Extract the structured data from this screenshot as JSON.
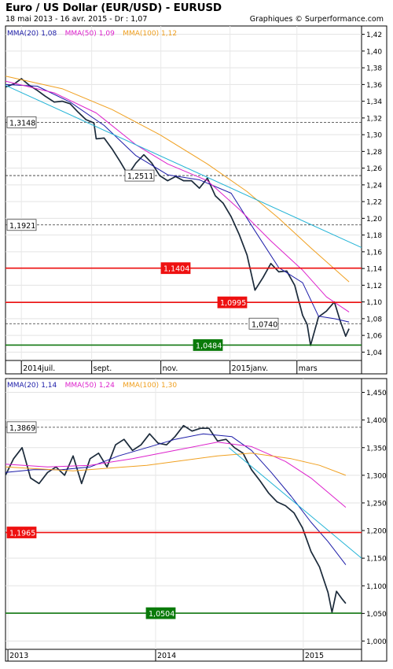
{
  "header": {
    "title": "Euro / US Dollar (EUR/USD) - EURUSD",
    "subtitle": "18 mai 2013 - 16 avr. 2015 - Dr : 1,07",
    "credit": "Graphiques © Surperformance.com"
  },
  "colors": {
    "price": "#1b2a3a",
    "mma20": "#1c1ca8",
    "mma50": "#dd22cc",
    "mma100": "#f0a020",
    "trend": "#22b3d6",
    "resistance": "#ee1111",
    "support": "#117711",
    "label_green_bg": "#0a7a0a",
    "label_red_bg": "#ee1111"
  },
  "chart_data": [
    {
      "type": "line",
      "name": "daily",
      "xlabels": [
        "2014juil.",
        "sept.",
        "nov.",
        "2015janv.",
        "mars"
      ],
      "xticks": [
        "2014-07-01",
        "2014-09-01",
        "2014-11-01",
        "2015-01-01",
        "2015-03-01"
      ],
      "xlim": [
        "2014-06-17",
        "2015-04-27"
      ],
      "ylim": [
        1.03,
        1.43
      ],
      "yticks": [
        "1,04",
        "1,06",
        "1,08",
        "1,10",
        "1,12",
        "1,14",
        "1,16",
        "1,18",
        "1,20",
        "1,22",
        "1,24",
        "1,26",
        "1,28",
        "1,30",
        "1,32",
        "1,34",
        "1,36",
        "1,38",
        "1,40",
        "1,42"
      ],
      "yticks_values": [
        1.04,
        1.06,
        1.08,
        1.1,
        1.12,
        1.14,
        1.16,
        1.18,
        1.2,
        1.22,
        1.24,
        1.26,
        1.28,
        1.3,
        1.32,
        1.34,
        1.36,
        1.38,
        1.4,
        1.42
      ],
      "legend": [
        {
          "label": "MMA(20)",
          "value": "1,08"
        },
        {
          "label": "MMA(50)",
          "value": "1,09"
        },
        {
          "label": "MMA(100)",
          "value": "1,12"
        }
      ],
      "annotations": [
        {
          "label": "1,3148",
          "value": 1.3148,
          "style": "dashed"
        },
        {
          "label": "1,2511",
          "value": 1.2511,
          "style": "dashed"
        },
        {
          "label": "1,1921",
          "value": 1.1921,
          "style": "dashed"
        },
        {
          "label": "1,1404",
          "value": 1.1404,
          "style": "red"
        },
        {
          "label": "1,0995",
          "value": 1.0995,
          "style": "red"
        },
        {
          "label": "1,0740",
          "value": 1.074,
          "style": "dashed"
        },
        {
          "label": "1,0484",
          "value": 1.0484,
          "style": "green"
        }
      ],
      "series": [
        {
          "key": "price",
          "x": [
            "2014-06-17",
            "2014-06-25",
            "2014-07-01",
            "2014-07-08",
            "2014-07-15",
            "2014-07-22",
            "2014-07-30",
            "2014-08-06",
            "2014-08-13",
            "2014-08-20",
            "2014-08-27",
            "2014-09-03",
            "2014-09-05",
            "2014-09-12",
            "2014-09-19",
            "2014-09-26",
            "2014-10-03",
            "2014-10-10",
            "2014-10-17",
            "2014-10-24",
            "2014-10-31",
            "2014-11-07",
            "2014-11-14",
            "2014-11-21",
            "2014-11-28",
            "2014-12-05",
            "2014-12-12",
            "2014-12-19",
            "2014-12-26",
            "2015-01-02",
            "2015-01-09",
            "2015-01-16",
            "2015-01-23",
            "2015-01-30",
            "2015-02-06",
            "2015-02-13",
            "2015-02-20",
            "2015-02-27",
            "2015-03-06",
            "2015-03-10",
            "2015-03-13",
            "2015-03-20",
            "2015-03-27",
            "2015-04-03",
            "2015-04-08",
            "2015-04-13",
            "2015-04-16"
          ],
          "y": [
            1.357,
            1.361,
            1.367,
            1.359,
            1.353,
            1.346,
            1.339,
            1.34,
            1.337,
            1.327,
            1.318,
            1.314,
            1.295,
            1.296,
            1.283,
            1.268,
            1.252,
            1.266,
            1.276,
            1.266,
            1.251,
            1.245,
            1.25,
            1.245,
            1.245,
            1.236,
            1.248,
            1.227,
            1.218,
            1.202,
            1.181,
            1.156,
            1.114,
            1.129,
            1.146,
            1.136,
            1.137,
            1.12,
            1.084,
            1.073,
            1.048,
            1.082,
            1.089,
            1.1,
            1.078,
            1.059,
            1.068
          ]
        },
        {
          "key": "mma20",
          "x": [
            "2014-06-17",
            "2014-07-15",
            "2014-08-13",
            "2014-09-12",
            "2014-10-10",
            "2014-11-07",
            "2014-12-05",
            "2015-01-02",
            "2015-01-23",
            "2015-02-13",
            "2015-03-06",
            "2015-03-20",
            "2015-04-03",
            "2015-04-16"
          ],
          "y": [
            1.36,
            1.358,
            1.339,
            1.311,
            1.275,
            1.252,
            1.246,
            1.23,
            1.185,
            1.141,
            1.123,
            1.083,
            1.08,
            1.076
          ]
        },
        {
          "key": "mma50",
          "x": [
            "2014-06-17",
            "2014-07-30",
            "2014-09-05",
            "2014-10-10",
            "2014-11-07",
            "2014-12-12",
            "2015-01-09",
            "2015-02-06",
            "2015-03-06",
            "2015-03-27",
            "2015-04-16"
          ],
          "y": [
            1.364,
            1.35,
            1.326,
            1.288,
            1.265,
            1.245,
            1.211,
            1.173,
            1.138,
            1.106,
            1.088
          ]
        },
        {
          "key": "mma100",
          "x": [
            "2014-06-17",
            "2014-08-06",
            "2014-09-19",
            "2014-10-31",
            "2014-12-12",
            "2015-01-16",
            "2015-02-13",
            "2015-03-13",
            "2015-04-16"
          ],
          "y": [
            1.37,
            1.355,
            1.33,
            1.3,
            1.265,
            1.232,
            1.2,
            1.165,
            1.124
          ]
        },
        {
          "key": "trend",
          "x": [
            "2014-06-17",
            "2015-04-27"
          ],
          "y": [
            1.359,
            1.165
          ]
        }
      ]
    },
    {
      "type": "line",
      "name": "weekly",
      "xlabels": [
        "2013",
        "2014",
        "2015"
      ],
      "xticks": [
        "2013-01-01",
        "2014-01-01",
        "2015-01-01"
      ],
      "xlim": [
        "2012-12-26",
        "2015-05-25"
      ],
      "ylim": [
        0.985,
        1.475
      ],
      "yticks": [
        "1,000",
        "1,050",
        "1,100",
        "1,150",
        "1,200",
        "1,250",
        "1,300",
        "1,350",
        "1,400",
        "1,450"
      ],
      "yticks_values": [
        1.0,
        1.05,
        1.1,
        1.15,
        1.2,
        1.25,
        1.3,
        1.35,
        1.4,
        1.45
      ],
      "legend": [
        {
          "label": "MMA(20)",
          "value": "1,14"
        },
        {
          "label": "MMA(50)",
          "value": "1,24"
        },
        {
          "label": "MMA(100)",
          "value": "1,30"
        }
      ],
      "annotations": [
        {
          "label": "1,3869",
          "value": 1.3869,
          "style": "dashed"
        },
        {
          "label": "1,1965",
          "value": 1.1965,
          "style": "red"
        },
        {
          "label": "1,0504",
          "value": 1.0504,
          "style": "green"
        }
      ],
      "series": [
        {
          "key": "price",
          "x": [
            "2012-12-26",
            "2013-01-15",
            "2013-02-05",
            "2013-02-26",
            "2013-03-19",
            "2013-04-09",
            "2013-04-30",
            "2013-05-21",
            "2013-06-11",
            "2013-07-02",
            "2013-07-23",
            "2013-08-13",
            "2013-09-03",
            "2013-09-24",
            "2013-10-15",
            "2013-11-05",
            "2013-11-26",
            "2013-12-17",
            "2014-01-07",
            "2014-01-28",
            "2014-02-18",
            "2014-03-11",
            "2014-04-01",
            "2014-04-22",
            "2014-05-13",
            "2014-06-03",
            "2014-06-24",
            "2014-07-15",
            "2014-08-05",
            "2014-08-26",
            "2014-09-16",
            "2014-10-07",
            "2014-10-28",
            "2014-11-18",
            "2014-12-09",
            "2014-12-30",
            "2015-01-20",
            "2015-02-10",
            "2015-03-03",
            "2015-03-13",
            "2015-03-24",
            "2015-04-07",
            "2015-04-16"
          ],
          "y": [
            1.3,
            1.33,
            1.35,
            1.295,
            1.285,
            1.305,
            1.315,
            1.3,
            1.335,
            1.285,
            1.33,
            1.34,
            1.315,
            1.355,
            1.365,
            1.345,
            1.355,
            1.375,
            1.358,
            1.355,
            1.37,
            1.39,
            1.38,
            1.385,
            1.385,
            1.362,
            1.365,
            1.35,
            1.34,
            1.31,
            1.29,
            1.268,
            1.252,
            1.245,
            1.232,
            1.205,
            1.162,
            1.134,
            1.088,
            1.052,
            1.09,
            1.076,
            1.068
          ]
        },
        {
          "key": "mma20",
          "x": [
            "2012-12-26",
            "2013-03-05",
            "2013-05-14",
            "2013-07-23",
            "2013-10-01",
            "2013-12-10",
            "2014-02-18",
            "2014-04-29",
            "2014-07-08",
            "2014-08-26",
            "2014-10-14",
            "2014-12-02",
            "2015-01-20",
            "2015-03-03",
            "2015-04-16"
          ],
          "y": [
            1.305,
            1.31,
            1.31,
            1.315,
            1.335,
            1.35,
            1.365,
            1.375,
            1.37,
            1.345,
            1.305,
            1.262,
            1.215,
            1.18,
            1.138
          ]
        },
        {
          "key": "mma50",
          "x": [
            "2012-12-26",
            "2013-04-09",
            "2013-07-23",
            "2013-11-05",
            "2014-02-18",
            "2014-06-03",
            "2014-08-26",
            "2014-11-18",
            "2015-01-20",
            "2015-04-16"
          ],
          "y": [
            1.32,
            1.315,
            1.318,
            1.33,
            1.345,
            1.36,
            1.352,
            1.325,
            1.295,
            1.242
          ]
        },
        {
          "key": "mma100",
          "x": [
            "2012-12-26",
            "2013-06-11",
            "2013-12-10",
            "2014-06-03",
            "2014-08-26",
            "2014-12-02",
            "2015-02-10",
            "2015-04-16"
          ],
          "y": [
            1.315,
            1.308,
            1.318,
            1.335,
            1.34,
            1.33,
            1.318,
            1.3
          ]
        },
        {
          "key": "trend",
          "x": [
            "2014-07-01",
            "2015-05-25"
          ],
          "y": [
            1.35,
            1.15
          ]
        }
      ]
    }
  ]
}
